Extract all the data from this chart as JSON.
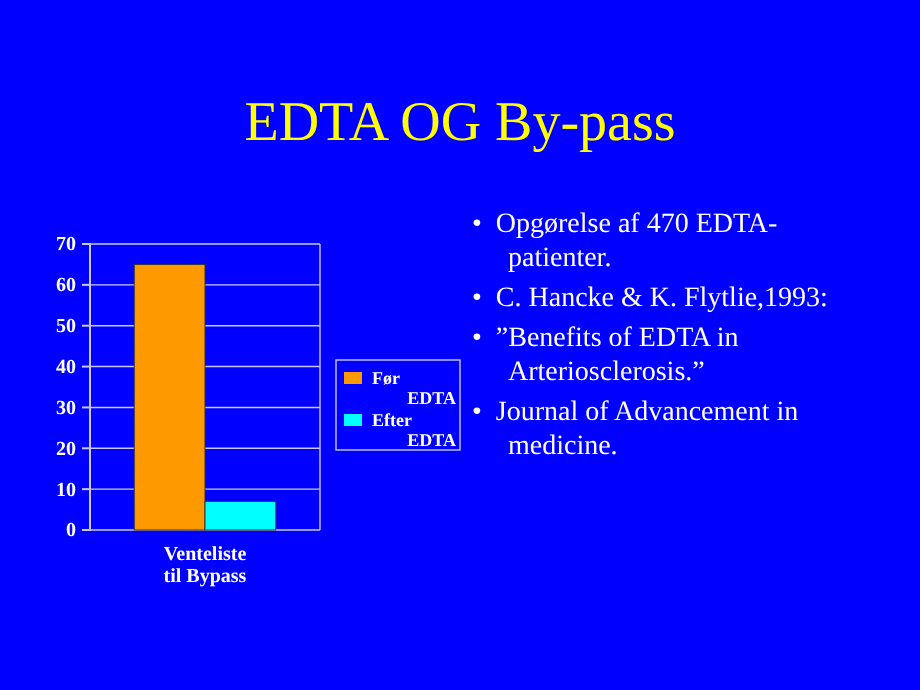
{
  "chart_data": {
    "type": "bar",
    "title": "EDTA OG By-pass",
    "categories": [
      "Venteliste til Bypass"
    ],
    "series": [
      {
        "name": "Før EDTA",
        "color": "#ff9900",
        "values": [
          65
        ]
      },
      {
        "name": "Efter EDTA",
        "color": "#00ffff",
        "values": [
          7
        ]
      }
    ],
    "ylim": [
      0,
      70
    ],
    "yticks": [
      0,
      10,
      20,
      30,
      40,
      50,
      60,
      70
    ],
    "grid": "y",
    "legend": "right",
    "annotations": [
      "•  Opgørelse af 470 EDTA-patienter.",
      "•  C. Hancke & K. Flytlie,1993:",
      "•  ”Benefits of EDTA in Arteriosclerosis.”",
      "•  Journal of Advancement in medicine."
    ]
  }
}
